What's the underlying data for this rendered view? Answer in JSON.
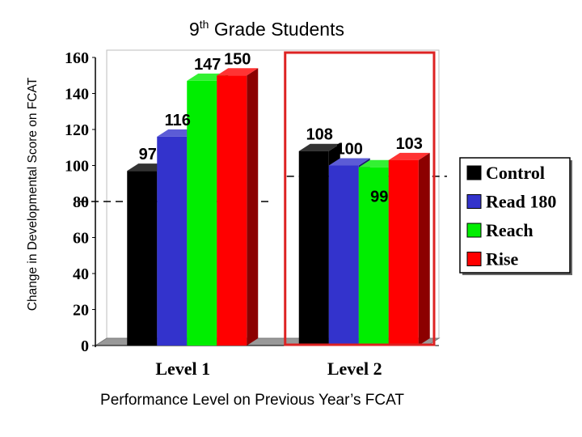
{
  "chart_data": {
    "type": "bar",
    "title": "9",
    "title_superscript": "th",
    "title_rest": " Grade Students",
    "xlabel": "Performance Level on Previous Year’s FCAT",
    "ylabel": "Change in Developmental Score on FCAT",
    "categories": [
      "Level 1",
      "Level 2"
    ],
    "series": [
      {
        "name": "Control",
        "color": "#000000",
        "values": [
          97,
          108
        ]
      },
      {
        "name": "Read 180",
        "color": "#3333cc",
        "values": [
          116,
          100
        ]
      },
      {
        "name": "Reach",
        "color": "#00ee00",
        "values": [
          147,
          99
        ]
      },
      {
        "name": "Rise",
        "color": "#ff0000",
        "values": [
          150,
          103
        ]
      }
    ],
    "ylim": [
      0,
      160
    ],
    "yticks": [
      "0",
      "20",
      "40",
      "60",
      "80",
      "100",
      "120",
      "140",
      "160"
    ],
    "reference_lines": [
      {
        "category": "Level 1",
        "value": 80
      },
      {
        "category": "Level 2",
        "value": 94
      }
    ],
    "highlighted_category": "Level 2",
    "highlight_color": "#dd2222",
    "legend_position": "right",
    "grid": false
  }
}
